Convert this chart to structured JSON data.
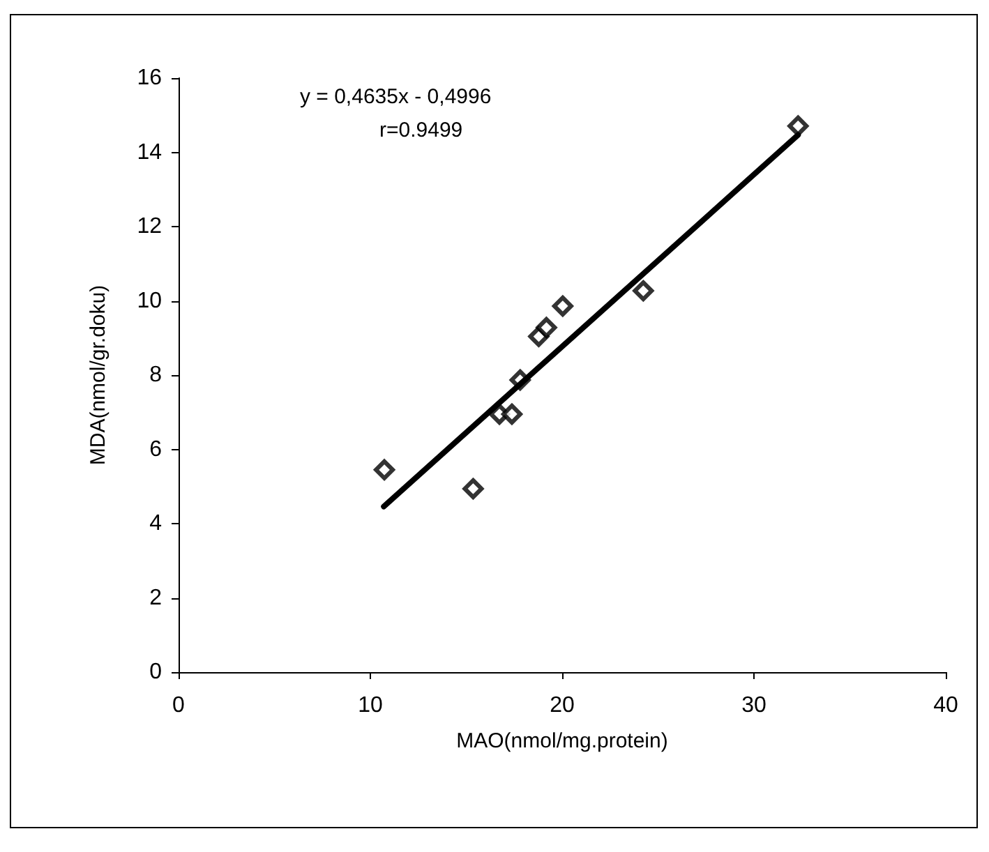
{
  "chart_data": {
    "type": "scatter",
    "xlabel": "MAO(nmol/mg.protein)",
    "ylabel": "MDA(nmol/gr.doku)",
    "annotations": [
      "y = 0,4635x - 0,4996",
      "r=0.9499"
    ],
    "xlim": [
      0,
      40
    ],
    "xticks": [
      0,
      10,
      20,
      30,
      40
    ],
    "ylim": [
      0,
      16
    ],
    "yticks": [
      0,
      2,
      4,
      6,
      8,
      10,
      12,
      14,
      16
    ],
    "grid": false,
    "marker": "diamond",
    "series": [
      {
        "color": "#000000",
        "x": [
          10.73,
          15.36,
          16.73,
          17.38,
          17.81,
          18.78,
          19.18,
          20.03,
          24.23,
          32.3
        ],
        "values": [
          5.45,
          4.94,
          6.95,
          6.95,
          7.87,
          9.04,
          9.28,
          9.86,
          10.27,
          14.71
        ]
      },
      {
        "type": "line",
        "color": "#000000",
        "marker": "none",
        "line_style": "solid",
        "x": [
          10.7,
          32.3
        ],
        "values": [
          4.46,
          14.47
        ]
      }
    ]
  }
}
